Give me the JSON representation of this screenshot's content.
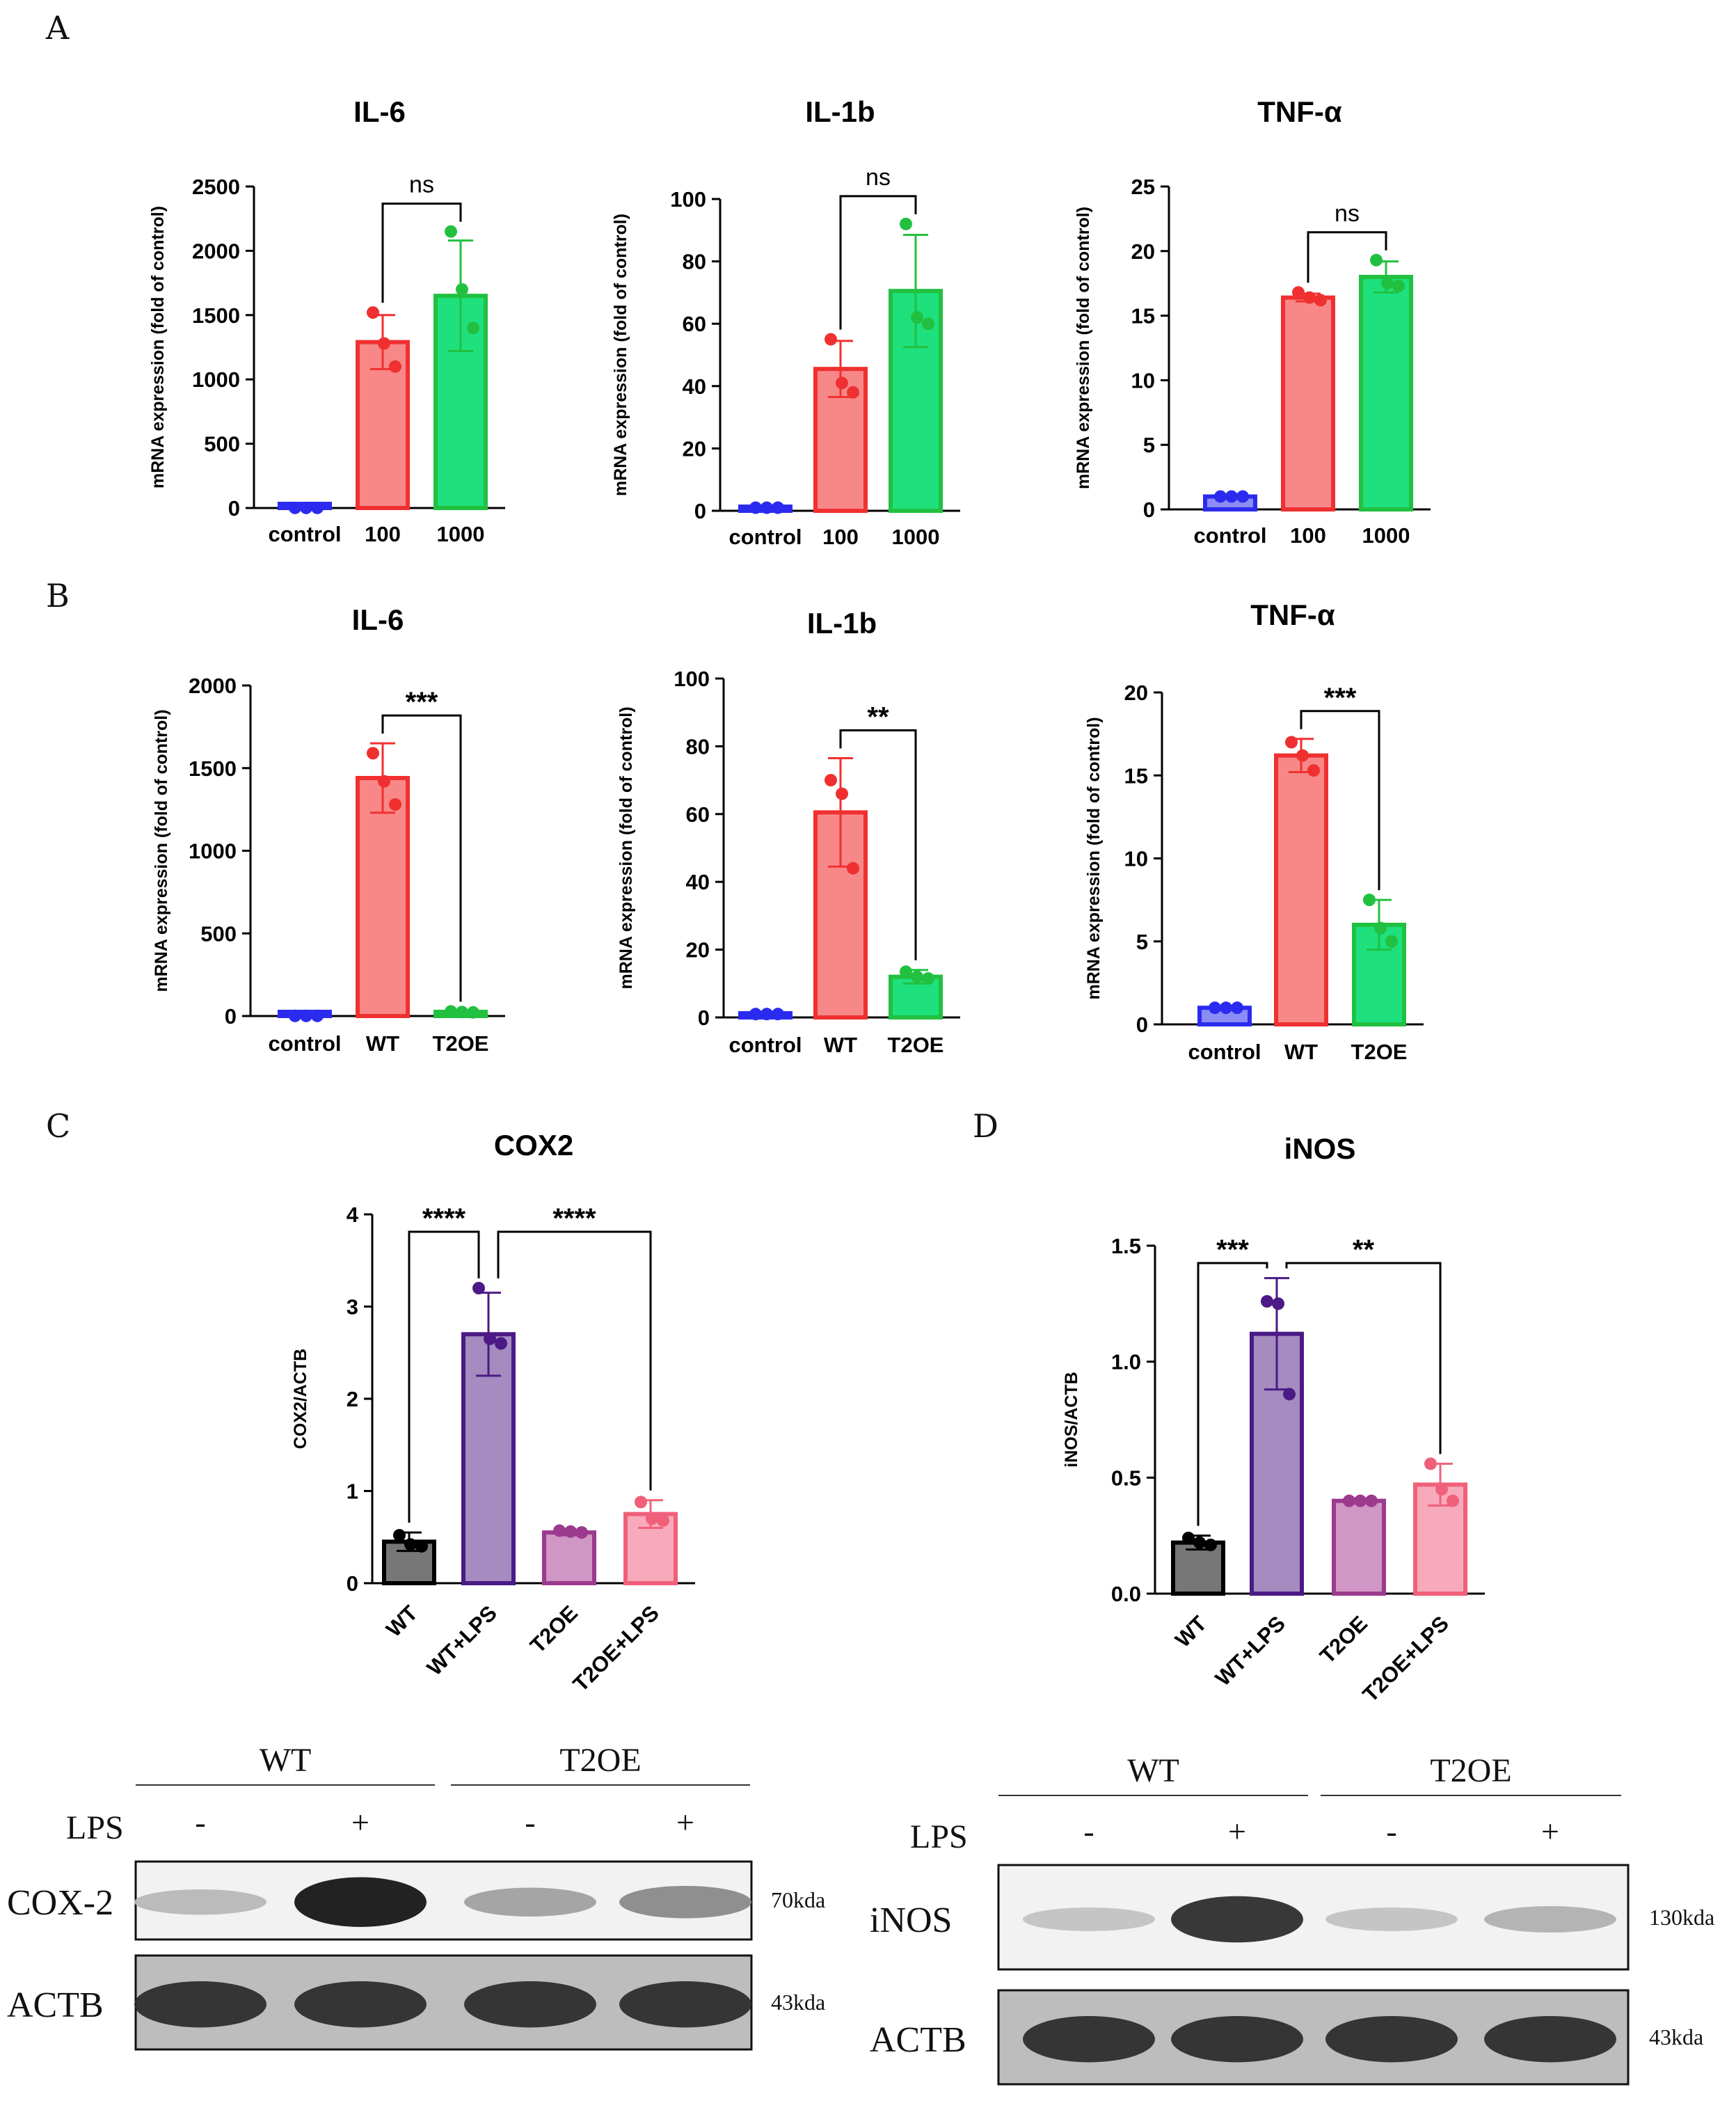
{
  "panel_letters": {
    "A": "A",
    "B": "B",
    "C": "C",
    "D": "D"
  },
  "chart_data": [
    {
      "id": "A1",
      "type": "bar",
      "title": "IL-6",
      "ylabel": "mRNA expression (fold of control)",
      "categories": [
        "control",
        "100",
        "1000"
      ],
      "values": [
        1,
        1290,
        1650
      ],
      "errors": [
        1,
        210,
        430
      ],
      "points": [
        [
          1,
          1,
          1
        ],
        [
          1520,
          1280,
          1100
        ],
        [
          2150,
          1700,
          1400
        ]
      ],
      "colors": [
        "#2b2bf0",
        "#f03030",
        "#22c040"
      ],
      "fills": [
        "#8c8cf5",
        "#f88888",
        "#1ee07c"
      ],
      "ylim": [
        0,
        2500
      ],
      "yticks": [
        0,
        500,
        1000,
        1500,
        2000,
        2500
      ],
      "comparisons": [
        {
          "from": 1,
          "to": 2,
          "label": "ns"
        }
      ]
    },
    {
      "id": "A2",
      "type": "bar",
      "title": "IL-1b",
      "ylabel": "mRNA expression (fold of control)",
      "categories": [
        "control",
        "100",
        "1000"
      ],
      "values": [
        1,
        45.5,
        70.5
      ],
      "errors": [
        0.5,
        9,
        18
      ],
      "points": [
        [
          1,
          1,
          1
        ],
        [
          55,
          41,
          38
        ],
        [
          92,
          62,
          60
        ]
      ],
      "colors": [
        "#2b2bf0",
        "#f03030",
        "#22c040"
      ],
      "fills": [
        "#8c8cf5",
        "#f88888",
        "#1ee07c"
      ],
      "ylim": [
        0,
        100
      ],
      "yticks": [
        0,
        20,
        40,
        60,
        80,
        100
      ],
      "comparisons": [
        {
          "from": 1,
          "to": 2,
          "label": "ns"
        }
      ]
    },
    {
      "id": "A3",
      "type": "bar",
      "title": "TNF-α",
      "ylabel": "mRNA expression (fold of control)",
      "categories": [
        "control",
        "100",
        "1000"
      ],
      "values": [
        1,
        16.4,
        18
      ],
      "errors": [
        0.1,
        0.3,
        1.2
      ],
      "points": [
        [
          1,
          1,
          1
        ],
        [
          16.8,
          16.4,
          16.2
        ],
        [
          19.3,
          17.5,
          17.3
        ]
      ],
      "colors": [
        "#2b2bf0",
        "#f03030",
        "#22c040"
      ],
      "fills": [
        "#8c8cf5",
        "#f88888",
        "#1ee07c"
      ],
      "ylim": [
        0,
        25
      ],
      "yticks": [
        0,
        5,
        10,
        15,
        20,
        25
      ],
      "comparisons": [
        {
          "from": 1,
          "to": 2,
          "label": "ns"
        }
      ]
    },
    {
      "id": "B1",
      "type": "bar",
      "title": "IL-6",
      "ylabel": "mRNA expression (fold of control)",
      "categories": [
        "control",
        "WT",
        "T2OE"
      ],
      "values": [
        1,
        1440,
        25
      ],
      "errors": [
        1,
        210,
        3
      ],
      "points": [
        [
          1,
          1,
          1
        ],
        [
          1590,
          1420,
          1280
        ],
        [
          28,
          24,
          22
        ]
      ],
      "colors": [
        "#2b2bf0",
        "#f03030",
        "#22c040"
      ],
      "fills": [
        "#8c8cf5",
        "#f88888",
        "#1ee07c"
      ],
      "ylim": [
        0,
        2000
      ],
      "yticks": [
        0,
        500,
        1000,
        1500,
        2000
      ],
      "comparisons": [
        {
          "from": 1,
          "to": 2,
          "label": "***"
        }
      ]
    },
    {
      "id": "B2",
      "type": "bar",
      "title": "IL-1b",
      "ylabel": "mRNA expression (fold of control)",
      "categories": [
        "control",
        "WT",
        "T2OE"
      ],
      "values": [
        1,
        60.5,
        12
      ],
      "errors": [
        0.5,
        16,
        2
      ],
      "points": [
        [
          1,
          1,
          1
        ],
        [
          70,
          66,
          44
        ],
        [
          13.5,
          12,
          11.5
        ]
      ],
      "colors": [
        "#2b2bf0",
        "#f03030",
        "#22c040"
      ],
      "fills": [
        "#8c8cf5",
        "#f88888",
        "#1ee07c"
      ],
      "ylim": [
        0,
        100
      ],
      "yticks": [
        0,
        20,
        40,
        60,
        80,
        100
      ],
      "comparisons": [
        {
          "from": 1,
          "to": 2,
          "label": "**"
        }
      ]
    },
    {
      "id": "B3",
      "type": "bar",
      "title": "TNF-α",
      "ylabel": "mRNA expression (fold of control)",
      "categories": [
        "control",
        "WT",
        "T2OE"
      ],
      "values": [
        1,
        16.2,
        6
      ],
      "errors": [
        0.1,
        1,
        1.5
      ],
      "points": [
        [
          1,
          1,
          1
        ],
        [
          17,
          16.2,
          15.3
        ],
        [
          7.5,
          5.8,
          5
        ]
      ],
      "colors": [
        "#2b2bf0",
        "#f03030",
        "#22c040"
      ],
      "fills": [
        "#8c8cf5",
        "#f88888",
        "#1ee07c"
      ],
      "ylim": [
        0,
        20
      ],
      "yticks": [
        0,
        5,
        10,
        15,
        20
      ],
      "comparisons": [
        {
          "from": 1,
          "to": 2,
          "label": "***"
        }
      ]
    },
    {
      "id": "C",
      "type": "bar",
      "title": "COX2",
      "ylabel": "COX2/ACTB",
      "categories": [
        "WT",
        "WT+LPS",
        "T2OE",
        "T2OE+LPS"
      ],
      "values": [
        0.45,
        2.7,
        0.55,
        0.75
      ],
      "errors": [
        0.1,
        0.45,
        0.03,
        0.15
      ],
      "points": [
        [
          0.52,
          0.42,
          0.4
        ],
        [
          3.2,
          2.65,
          2.6
        ],
        [
          0.57,
          0.56,
          0.55
        ],
        [
          0.88,
          0.7,
          0.68
        ]
      ],
      "colors": [
        "#000000",
        "#4b1a86",
        "#9c3a8e",
        "#f0607a"
      ],
      "fills": [
        "#777777",
        "#a58bbf",
        "#cf96c6",
        "#f7aabb"
      ],
      "ylim": [
        0,
        4
      ],
      "yticks": [
        0,
        1,
        2,
        3,
        4
      ],
      "comparisons": [
        {
          "from": 0,
          "to": 1,
          "label": "****"
        },
        {
          "from": 1,
          "to": 3,
          "label": "****"
        }
      ]
    },
    {
      "id": "D",
      "type": "bar",
      "title": "iNOS",
      "ylabel": "iNOS/ACTB",
      "categories": [
        "WT",
        "WT+LPS",
        "T2OE",
        "T2OE+LPS"
      ],
      "values": [
        0.22,
        1.12,
        0.4,
        0.47
      ],
      "errors": [
        0.03,
        0.24,
        0.01,
        0.09
      ],
      "points": [
        [
          0.24,
          0.22,
          0.21
        ],
        [
          1.26,
          1.25,
          0.86
        ],
        [
          0.4,
          0.4,
          0.4
        ],
        [
          0.56,
          0.45,
          0.4
        ]
      ],
      "colors": [
        "#000000",
        "#4b1a86",
        "#9c3a8e",
        "#f0607a"
      ],
      "fills": [
        "#777777",
        "#a58bbf",
        "#cf96c6",
        "#f7aabb"
      ],
      "ylim": [
        0,
        1.5
      ],
      "yticks": [
        "0.0",
        "0.5",
        "1.0",
        "1.5"
      ],
      "comparisons": [
        {
          "from": 0,
          "to": 1,
          "label": "***"
        },
        {
          "from": 1,
          "to": 3,
          "label": "**"
        }
      ]
    }
  ],
  "blots": [
    {
      "id": "cox",
      "groups": [
        "WT",
        "T2OE"
      ],
      "treatment_label": "LPS",
      "treatments": [
        "-",
        "+",
        "-",
        "+"
      ],
      "rows": [
        {
          "label": "COX-2",
          "size": "70kda",
          "intensity": [
            0.25,
            0.95,
            0.35,
            0.45
          ]
        },
        {
          "label": "ACTB",
          "size": "43kda",
          "intensity": [
            0.85,
            0.85,
            0.85,
            0.85
          ]
        }
      ]
    },
    {
      "id": "inos",
      "groups": [
        "WT",
        "T2OE"
      ],
      "treatment_label": "LPS",
      "treatments": [
        "-",
        "+",
        "-",
        "+"
      ],
      "rows": [
        {
          "label": "iNOS",
          "size": "130kda",
          "intensity": [
            0.2,
            0.85,
            0.2,
            0.28
          ]
        },
        {
          "label": "ACTB",
          "size": "43kda",
          "intensity": [
            0.85,
            0.85,
            0.85,
            0.85
          ]
        }
      ]
    }
  ]
}
